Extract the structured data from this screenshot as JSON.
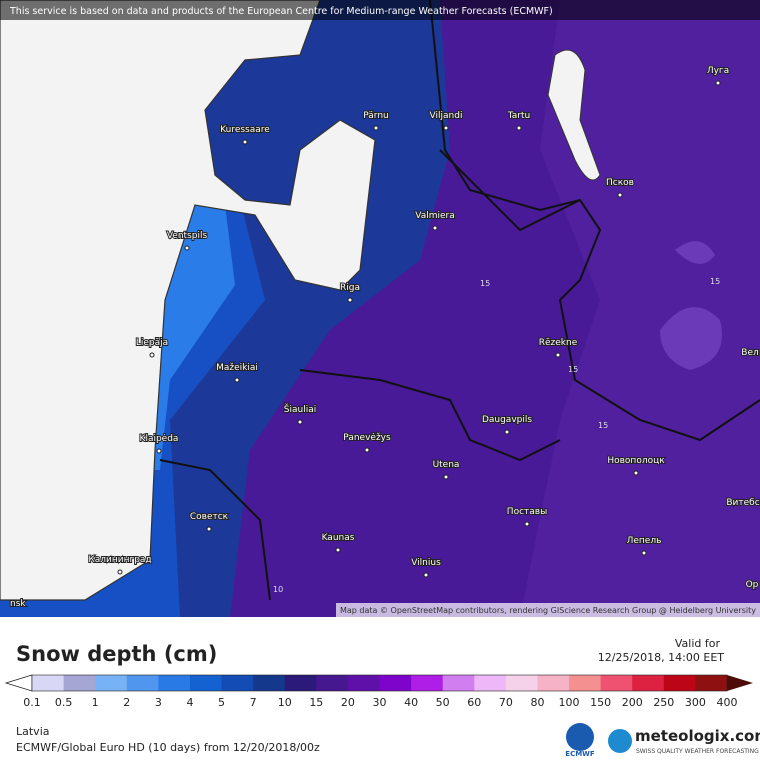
{
  "header": {
    "notice": "This service is based on data and products of the European Centre for Medium-range Weather Forecasts (ECMWF)"
  },
  "map": {
    "cities": [
      "Kuressaare",
      "Pärnu",
      "Viljandi",
      "Tartu",
      "Луга",
      "Псков",
      "Valmiera",
      "Ventspils",
      "Riga",
      "Liepāja",
      "Rēzekne",
      "Вел",
      "Mažeikiai",
      "Šiauliai",
      "Daugavpils",
      "Klaipėda",
      "Panevėžys",
      "Новополоцк",
      "Utena",
      "Витебс",
      "Советск",
      "Поставы",
      "Kaunas",
      "Лепель",
      "Калининград",
      "Vilnius",
      "Ор",
      "nsk"
    ],
    "contour_labels": [
      "15",
      "15",
      "15",
      "15",
      "10"
    ],
    "attribution": "Map data © OpenStreetMap contributors, rendering GIScience Research Group @ Heidelberg University"
  },
  "legend": {
    "title": "Snow depth (cm)",
    "valid_label": "Valid for",
    "valid_time": "12/25/2018, 14:00 EET",
    "ticks": [
      0.1,
      0.5,
      1,
      2,
      3,
      4,
      5,
      7,
      10,
      15,
      20,
      30,
      40,
      50,
      60,
      70,
      80,
      100,
      150,
      200,
      250,
      300,
      400
    ],
    "colors": [
      "#d8d8f6",
      "#a6a6d4",
      "#78b2f6",
      "#5096ee",
      "#2a7ae6",
      "#1462d2",
      "#124cb4",
      "#14388c",
      "#2c1a7a",
      "#461890",
      "#5e10a8",
      "#7e04cc",
      "#ae1ee6",
      "#d07ef0",
      "#eeb8f8",
      "#f6d2ea",
      "#f6b2c6",
      "#f49090",
      "#ee5270",
      "#dc2240",
      "#bc0618",
      "#8e1010"
    ],
    "over_color": "#4e0c08"
  },
  "footer": {
    "region": "Latvia",
    "model": "ECMWF/Global Euro HD (10 days) from 12/20/2018/00z",
    "brand": "meteologix.com",
    "tagline": "SWISS QUALITY WEATHER FORECASTING",
    "ecmwf": "ECMWF"
  }
}
